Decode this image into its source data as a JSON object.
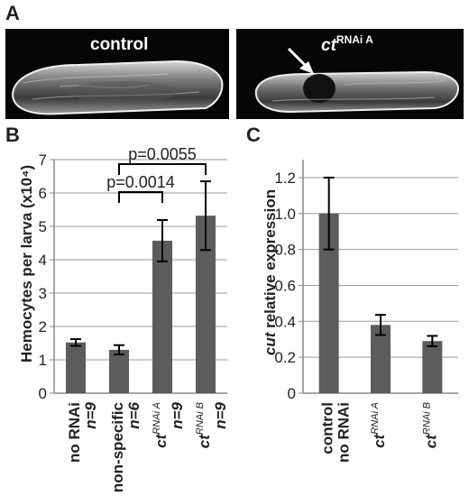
{
  "panels": {
    "a": {
      "label": "A"
    },
    "b": {
      "label": "B"
    },
    "c": {
      "label": "C"
    }
  },
  "micrographs": {
    "control": {
      "label": "control"
    },
    "rnai": {
      "label_base": "ct",
      "label_sup": "RNAi A"
    }
  },
  "colors": {
    "bar": "#5c5c5c",
    "grid": "#9a9a9a",
    "axis": "#888888",
    "text": "#222222"
  },
  "chart_data": [
    {
      "panel": "B",
      "type": "bar",
      "ylabel": "Hemocytes per larva (x10⁴)",
      "ylim": [
        0,
        7
      ],
      "yticks": [
        0,
        1,
        2,
        3,
        4,
        5,
        6,
        7
      ],
      "grid": true,
      "categories": [
        {
          "main": "no RNAi",
          "sup": "",
          "n": "n=9"
        },
        {
          "main": "non-specific",
          "sup": "",
          "n": "n=6"
        },
        {
          "main": "ct",
          "sup": "RNAi A",
          "n": "n=9"
        },
        {
          "main": "ct",
          "sup": "RNAi B",
          "n": "n=9"
        }
      ],
      "values": [
        1.52,
        1.3,
        4.57,
        5.32
      ],
      "errors": [
        0.1,
        0.14,
        0.62,
        1.03
      ],
      "significance": [
        {
          "from": 1,
          "to": 2,
          "label": "p=0.0014"
        },
        {
          "from": 1,
          "to": 3,
          "label": "p=0.0055"
        }
      ]
    },
    {
      "panel": "C",
      "type": "bar",
      "ylabel_italic": "cut",
      "ylabel_rest": " relative expression",
      "ylim": [
        0,
        1.3
      ],
      "yticks": [
        0,
        0.2,
        0.4,
        0.6,
        0.8,
        1.0,
        1.2
      ],
      "ytick_labels": [
        "0",
        "0.2",
        "0.4",
        "0.6",
        "0.8",
        "1.0",
        "1.2"
      ],
      "grid": true,
      "categories": [
        {
          "main": "control",
          "line2": "no RNAi",
          "sup": ""
        },
        {
          "main": "ct",
          "sup": "RNAi A"
        },
        {
          "main": "ct",
          "sup": "RNAi B"
        }
      ],
      "values": [
        1.0,
        0.38,
        0.29
      ],
      "errors": [
        0.2,
        0.056,
        0.029
      ]
    }
  ]
}
